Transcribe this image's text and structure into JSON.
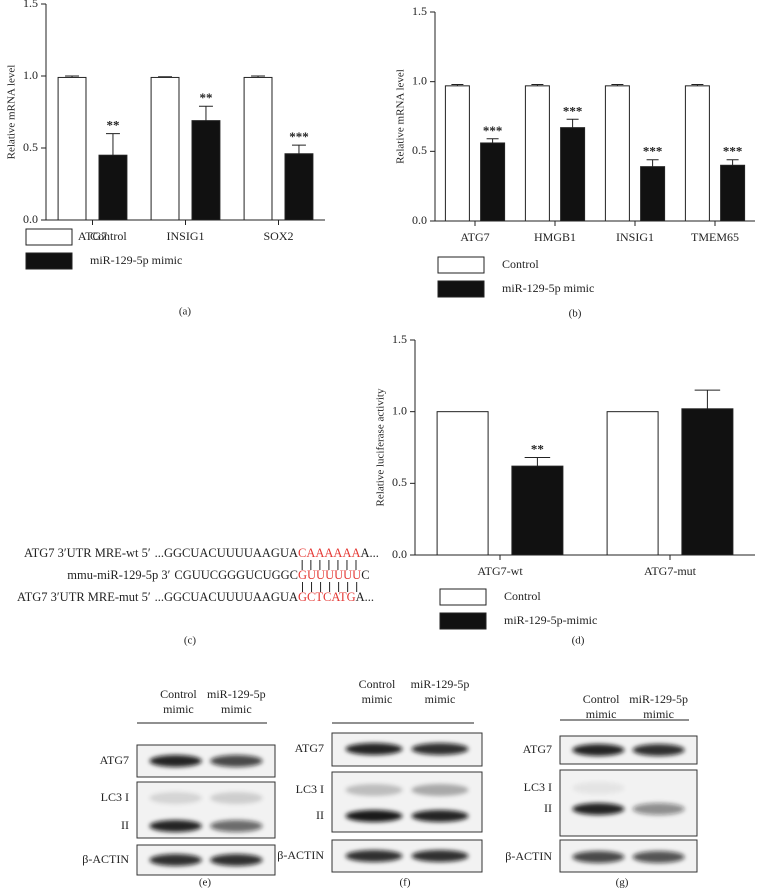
{
  "chart_data": [
    {
      "type": "bar",
      "panel_label": "(a)",
      "y_label": "Relative mRNA level",
      "categories": [
        "ATG7",
        "INSIG1",
        "SOX2"
      ],
      "series": [
        {
          "name": "Control",
          "color": "#ffffff",
          "values": [
            0.99,
            0.99,
            0.99
          ],
          "errors": [
            0.01,
            0.005,
            0.01
          ]
        },
        {
          "name": "miR-129-5p mimic",
          "color": "#111111",
          "values": [
            0.45,
            0.69,
            0.46
          ],
          "errors": [
            0.15,
            0.1,
            0.06
          ],
          "annotations": [
            "**",
            "**",
            "***"
          ]
        }
      ],
      "ylim": [
        0,
        1.5
      ],
      "yticks": [
        {
          "value": 0,
          "label": "0.0"
        },
        0.5,
        {
          "value": 1,
          "label": "1.0"
        },
        1.5
      ]
    },
    {
      "type": "bar",
      "panel_label": "(b)",
      "y_label": "Relative mRNA level",
      "categories": [
        "ATG7",
        "HMGB1",
        "INSIG1",
        "TMEM65"
      ],
      "series": [
        {
          "name": "Control",
          "color": "#ffffff",
          "values": [
            0.97,
            0.97,
            0.97,
            0.97
          ],
          "errors": [
            0.01,
            0.01,
            0.01,
            0.01
          ]
        },
        {
          "name": "miR-129-5p mimic",
          "color": "#111111",
          "values": [
            0.56,
            0.67,
            0.39,
            0.4
          ],
          "errors": [
            0.03,
            0.06,
            0.05,
            0.04
          ],
          "annotations": [
            "***",
            "***",
            "***",
            "***"
          ]
        }
      ],
      "ylim": [
        0,
        1.5
      ],
      "yticks": [
        {
          "value": 0,
          "label": "0.0"
        },
        0.5,
        {
          "value": 1,
          "label": "1.0"
        },
        1.5
      ]
    },
    {
      "type": "bar",
      "panel_label": "(d)",
      "y_label": "Relative luciferase activity",
      "categories": [
        "ATG7-wt",
        "ATG7-mut"
      ],
      "series": [
        {
          "name": "Control",
          "color": "#ffffff",
          "values": [
            1,
            1
          ]
        },
        {
          "name": "miR-129-5p-mimic",
          "color": "#111111",
          "values": [
            0.62,
            1.02
          ],
          "errors": [
            0.06,
            0.13
          ],
          "annotations": [
            "**",
            null
          ]
        }
      ],
      "ylim": [
        0,
        1.5
      ],
      "yticks": [
        {
          "value": 0,
          "label": "0.0"
        },
        0.5,
        {
          "value": 1,
          "label": "1.0"
        },
        1.5
      ]
    }
  ],
  "sequence": {
    "panel_label": "(c)",
    "lines": [
      {
        "label": "ATG7 3′UTR MRE-wt 5′",
        "seq": "...GGCUACUUUUAAGUA",
        "site": "CAAAAAA",
        "tail": "A..."
      },
      {
        "label": "mmu-miR-129-5p 3′",
        "seq": "CGUUCGGGUCUGGC",
        "site": "GUUUUUU",
        "tail": "C"
      },
      {
        "label": "ATG7 3′UTR MRE-mut 5′",
        "seq": "...GGCUACUUUUAAGUA",
        "site": "GCTCATG",
        "tail": "A..."
      }
    ]
  },
  "blots": [
    {
      "panel_label": "(e)",
      "columns": [
        [
          "Control",
          "mimic"
        ],
        [
          "miR-129-5p",
          "mimic"
        ]
      ],
      "rows": [
        "ATG7",
        "LC3 I",
        "II",
        "β-ACTIN"
      ]
    },
    {
      "panel_label": "(f)",
      "columns": [
        [
          "Control",
          "mimic"
        ],
        [
          "miR-129-5p",
          "mimic"
        ]
      ],
      "rows": [
        "ATG7",
        "LC3 I",
        "II",
        "β-ACTIN"
      ]
    },
    {
      "panel_label": "(g)",
      "columns": [
        [
          "Control",
          "mimic"
        ],
        [
          "miR-129-5p",
          "mimic"
        ]
      ],
      "rows": [
        "ATG7",
        "LC3 I",
        "II",
        "β-ACTIN"
      ]
    }
  ]
}
